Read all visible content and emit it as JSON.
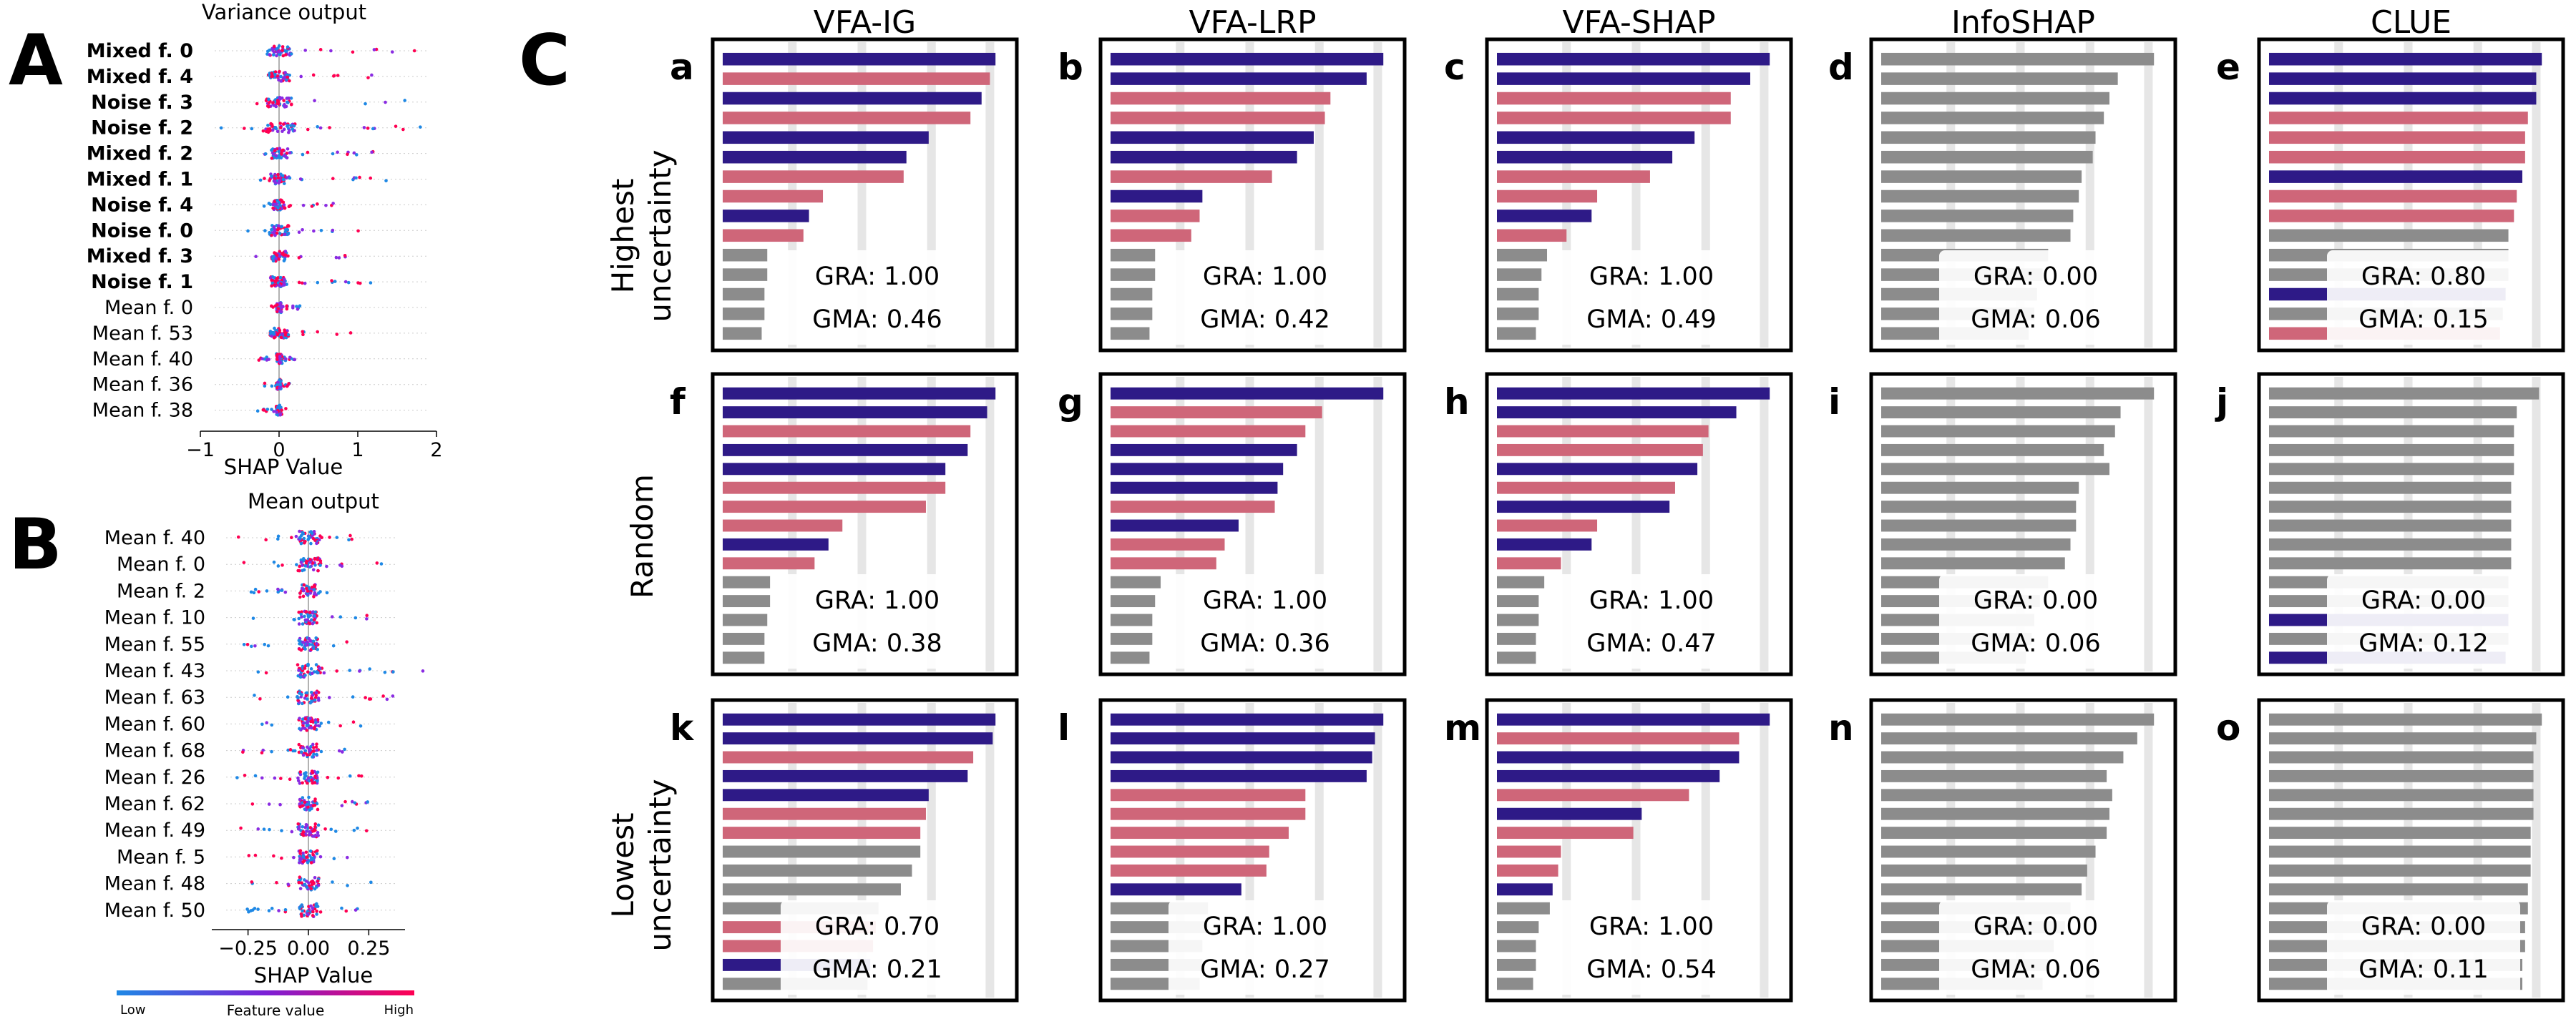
{
  "panel_letters": {
    "A": "A",
    "B": "B",
    "C": "C"
  },
  "colors": {
    "mixed": "#2e1a87",
    "noise": "#cf6679",
    "mean": "#8c8c8c",
    "low": "#1e88e5",
    "high": "#ff0052"
  },
  "colorbar": {
    "low": "Low",
    "title": "Feature value",
    "high": "High"
  },
  "chart_data": [
    {
      "type": "scatter",
      "panel": "A",
      "title": "Variance output",
      "xlabel": "SHAP Value",
      "xlim": [
        -1,
        2
      ],
      "xticks": [
        "−1",
        "0",
        "1",
        "2"
      ],
      "features": [
        {
          "name": "Mixed f. 0",
          "bold": true,
          "min": -0.2,
          "max": 1.8
        },
        {
          "name": "Mixed f. 4",
          "bold": true,
          "min": -0.2,
          "max": 1.5
        },
        {
          "name": "Noise f. 3",
          "bold": true,
          "min": -0.3,
          "max": 1.8
        },
        {
          "name": "Noise f. 2",
          "bold": true,
          "min": -0.8,
          "max": 1.9
        },
        {
          "name": "Mixed f. 2",
          "bold": true,
          "min": -0.2,
          "max": 1.2
        },
        {
          "name": "Mixed f. 1",
          "bold": true,
          "min": -0.3,
          "max": 1.5
        },
        {
          "name": "Noise f. 4",
          "bold": true,
          "min": -0.2,
          "max": 0.8
        },
        {
          "name": "Noise f. 0",
          "bold": true,
          "min": -0.5,
          "max": 1.1
        },
        {
          "name": "Mixed f. 3",
          "bold": true,
          "min": -0.3,
          "max": 0.9
        },
        {
          "name": "Noise f. 1",
          "bold": true,
          "min": -0.1,
          "max": 1.3
        },
        {
          "name": "Mean f. 0",
          "bold": false,
          "min": -0.1,
          "max": 0.3
        },
        {
          "name": "Mean f. 53",
          "bold": false,
          "min": -0.2,
          "max": 1.3
        },
        {
          "name": "Mean f. 40",
          "bold": false,
          "min": -0.3,
          "max": 0.2
        },
        {
          "name": "Mean f. 36",
          "bold": false,
          "min": -0.2,
          "max": 0.15
        },
        {
          "name": "Mean f. 38",
          "bold": false,
          "min": -0.3,
          "max": 0.15
        }
      ]
    },
    {
      "type": "scatter",
      "panel": "B",
      "title": "Mean output",
      "xlabel": "SHAP Value",
      "xlim": [
        -0.4,
        0.4
      ],
      "xticks": [
        "−0.25",
        "0.00",
        "0.25"
      ],
      "features": [
        {
          "name": "Mean f. 40",
          "bold": false,
          "min": -0.3,
          "max": 0.2
        },
        {
          "name": "Mean f. 0",
          "bold": false,
          "min": -0.3,
          "max": 0.35
        },
        {
          "name": "Mean f. 2",
          "bold": false,
          "min": -0.28,
          "max": 0.2
        },
        {
          "name": "Mean f. 10",
          "bold": false,
          "min": -0.25,
          "max": 0.25
        },
        {
          "name": "Mean f. 55",
          "bold": false,
          "min": -0.28,
          "max": 0.22
        },
        {
          "name": "Mean f. 43",
          "bold": false,
          "min": -0.25,
          "max": 0.48
        },
        {
          "name": "Mean f. 63",
          "bold": false,
          "min": -0.25,
          "max": 0.35
        },
        {
          "name": "Mean f. 60",
          "bold": false,
          "min": -0.25,
          "max": 0.25
        },
        {
          "name": "Mean f. 68",
          "bold": false,
          "min": -0.28,
          "max": 0.25
        },
        {
          "name": "Mean f. 26",
          "bold": false,
          "min": -0.3,
          "max": 0.22
        },
        {
          "name": "Mean f. 62",
          "bold": false,
          "min": -0.25,
          "max": 0.25
        },
        {
          "name": "Mean f. 49",
          "bold": false,
          "min": -0.3,
          "max": 0.25
        },
        {
          "name": "Mean f. 5",
          "bold": false,
          "min": -0.3,
          "max": 0.2
        },
        {
          "name": "Mean f. 48",
          "bold": false,
          "min": -0.28,
          "max": 0.3
        },
        {
          "name": "Mean f. 50",
          "bold": false,
          "min": -0.28,
          "max": 0.22
        }
      ]
    },
    {
      "type": "bar",
      "panel": "C",
      "methods": [
        "VFA-IG",
        "VFA-LRP",
        "VFA-SHAP",
        "InfoSHAP",
        "CLUE"
      ],
      "rows": [
        "Highest\nuncertainty",
        "Random",
        "Lowest\nuncertainty"
      ],
      "panels": [
        {
          "letter": "a",
          "gra": "GRA: 1.00",
          "gma": "GMA: 0.46",
          "values": [
            0.98,
            0.96,
            0.93,
            0.89,
            0.74,
            0.66,
            0.65,
            0.36,
            0.31,
            0.29,
            0.16,
            0.16,
            0.15,
            0.15,
            0.14
          ],
          "kinds": "MNMNMMNNMNGGGGG"
        },
        {
          "letter": "b",
          "gra": "GRA: 1.00",
          "gma": "GMA: 0.42",
          "values": [
            0.98,
            0.92,
            0.79,
            0.77,
            0.73,
            0.67,
            0.58,
            0.33,
            0.32,
            0.29,
            0.16,
            0.16,
            0.15,
            0.15,
            0.14
          ],
          "kinds": "MMNNMMNMNNGGGGG"
        },
        {
          "letter": "c",
          "gra": "GRA: 1.00",
          "gma": "GMA: 0.49",
          "values": [
            0.98,
            0.91,
            0.84,
            0.84,
            0.71,
            0.63,
            0.55,
            0.36,
            0.34,
            0.25,
            0.18,
            0.16,
            0.15,
            0.15,
            0.14
          ],
          "kinds": "MMNNMMNNMNGGGGG"
        },
        {
          "letter": "d",
          "gra": "GRA: 0.00",
          "gma": "GMA: 0.06",
          "values": [
            0.98,
            0.85,
            0.82,
            0.8,
            0.77,
            0.76,
            0.72,
            0.71,
            0.69,
            0.68,
            0.6,
            0.58,
            0.56,
            0.55,
            0.53
          ],
          "kinds": "GGGGGGGGGGGGGGG"
        },
        {
          "letter": "e",
          "gra": "GRA: 0.80",
          "gma": "GMA: 0.15",
          "values": [
            0.98,
            0.96,
            0.96,
            0.93,
            0.92,
            0.92,
            0.91,
            0.89,
            0.88,
            0.86,
            0.86,
            0.86,
            0.85,
            0.84,
            0.83
          ],
          "kinds": "MMMNNNMNNGGGMGN"
        },
        {
          "letter": "f",
          "gra": "GRA: 1.00",
          "gma": "GMA: 0.38",
          "values": [
            0.98,
            0.95,
            0.89,
            0.88,
            0.8,
            0.8,
            0.73,
            0.43,
            0.38,
            0.33,
            0.17,
            0.17,
            0.16,
            0.15,
            0.15
          ],
          "kinds": "MMNMMNNNMNGGGGG"
        },
        {
          "letter": "g",
          "gra": "GRA: 1.00",
          "gma": "GMA: 0.36",
          "values": [
            0.98,
            0.76,
            0.7,
            0.67,
            0.62,
            0.6,
            0.59,
            0.46,
            0.41,
            0.38,
            0.18,
            0.16,
            0.15,
            0.15,
            0.14
          ],
          "kinds": "MNNMMMNMNNGGGGG"
        },
        {
          "letter": "h",
          "gra": "GRA: 1.00",
          "gma": "GMA: 0.47",
          "values": [
            0.98,
            0.86,
            0.76,
            0.74,
            0.72,
            0.64,
            0.62,
            0.36,
            0.34,
            0.23,
            0.17,
            0.15,
            0.15,
            0.14,
            0.14
          ],
          "kinds": "MMNNMNMNMNGGGGG"
        },
        {
          "letter": "i",
          "gra": "GRA: 0.00",
          "gma": "GMA: 0.06",
          "values": [
            0.98,
            0.86,
            0.84,
            0.8,
            0.82,
            0.71,
            0.7,
            0.7,
            0.68,
            0.66,
            0.6,
            0.57,
            0.55,
            0.54,
            0.52
          ],
          "kinds": "GGGGGGGGGGGGGGG"
        },
        {
          "letter": "j",
          "gra": "GRA: 0.00",
          "gma": "GMA: 0.12",
          "values": [
            0.97,
            0.89,
            0.88,
            0.88,
            0.88,
            0.87,
            0.87,
            0.87,
            0.87,
            0.87,
            0.86,
            0.86,
            0.86,
            0.86,
            0.85
          ],
          "kinds": "GGGGGGGGGGGGMGM"
        },
        {
          "letter": "k",
          "gra": "GRA: 0.70",
          "gma": "GMA: 0.21",
          "values": [
            0.98,
            0.97,
            0.9,
            0.88,
            0.74,
            0.73,
            0.71,
            0.71,
            0.68,
            0.64,
            0.56,
            0.55,
            0.54,
            0.53,
            0.52
          ],
          "kinds": "MMNMMNNGGGGNNMG"
        },
        {
          "letter": "l",
          "gra": "GRA: 1.00",
          "gma": "GMA: 0.27",
          "values": [
            0.98,
            0.95,
            0.94,
            0.92,
            0.7,
            0.7,
            0.64,
            0.57,
            0.56,
            0.47,
            0.35,
            0.35,
            0.33,
            0.33,
            0.32
          ],
          "kinds": "MMMMNNNNNMGGGGG"
        },
        {
          "letter": "m",
          "gra": "GRA: 1.00",
          "gma": "GMA: 0.54",
          "values": [
            0.98,
            0.87,
            0.87,
            0.8,
            0.69,
            0.52,
            0.49,
            0.23,
            0.22,
            0.2,
            0.19,
            0.15,
            0.14,
            0.14,
            0.13
          ],
          "kinds": "MNMMNMNNNMGGGGG"
        },
        {
          "letter": "n",
          "gra": "GRA: 0.00",
          "gma": "GMA: 0.06",
          "values": [
            0.98,
            0.92,
            0.87,
            0.81,
            0.83,
            0.82,
            0.81,
            0.77,
            0.74,
            0.72,
            0.68,
            0.66,
            0.62,
            0.6,
            0.58
          ],
          "kinds": "GGGGGGGGGGGGGGG"
        },
        {
          "letter": "o",
          "gra": "GRA: 0.00",
          "gma": "GMA: 0.11",
          "values": [
            0.98,
            0.96,
            0.95,
            0.95,
            0.95,
            0.95,
            0.94,
            0.94,
            0.94,
            0.93,
            0.93,
            0.92,
            0.92,
            0.91,
            0.91
          ],
          "kinds": "GGGGGGGGGGGGGGG"
        }
      ]
    }
  ]
}
